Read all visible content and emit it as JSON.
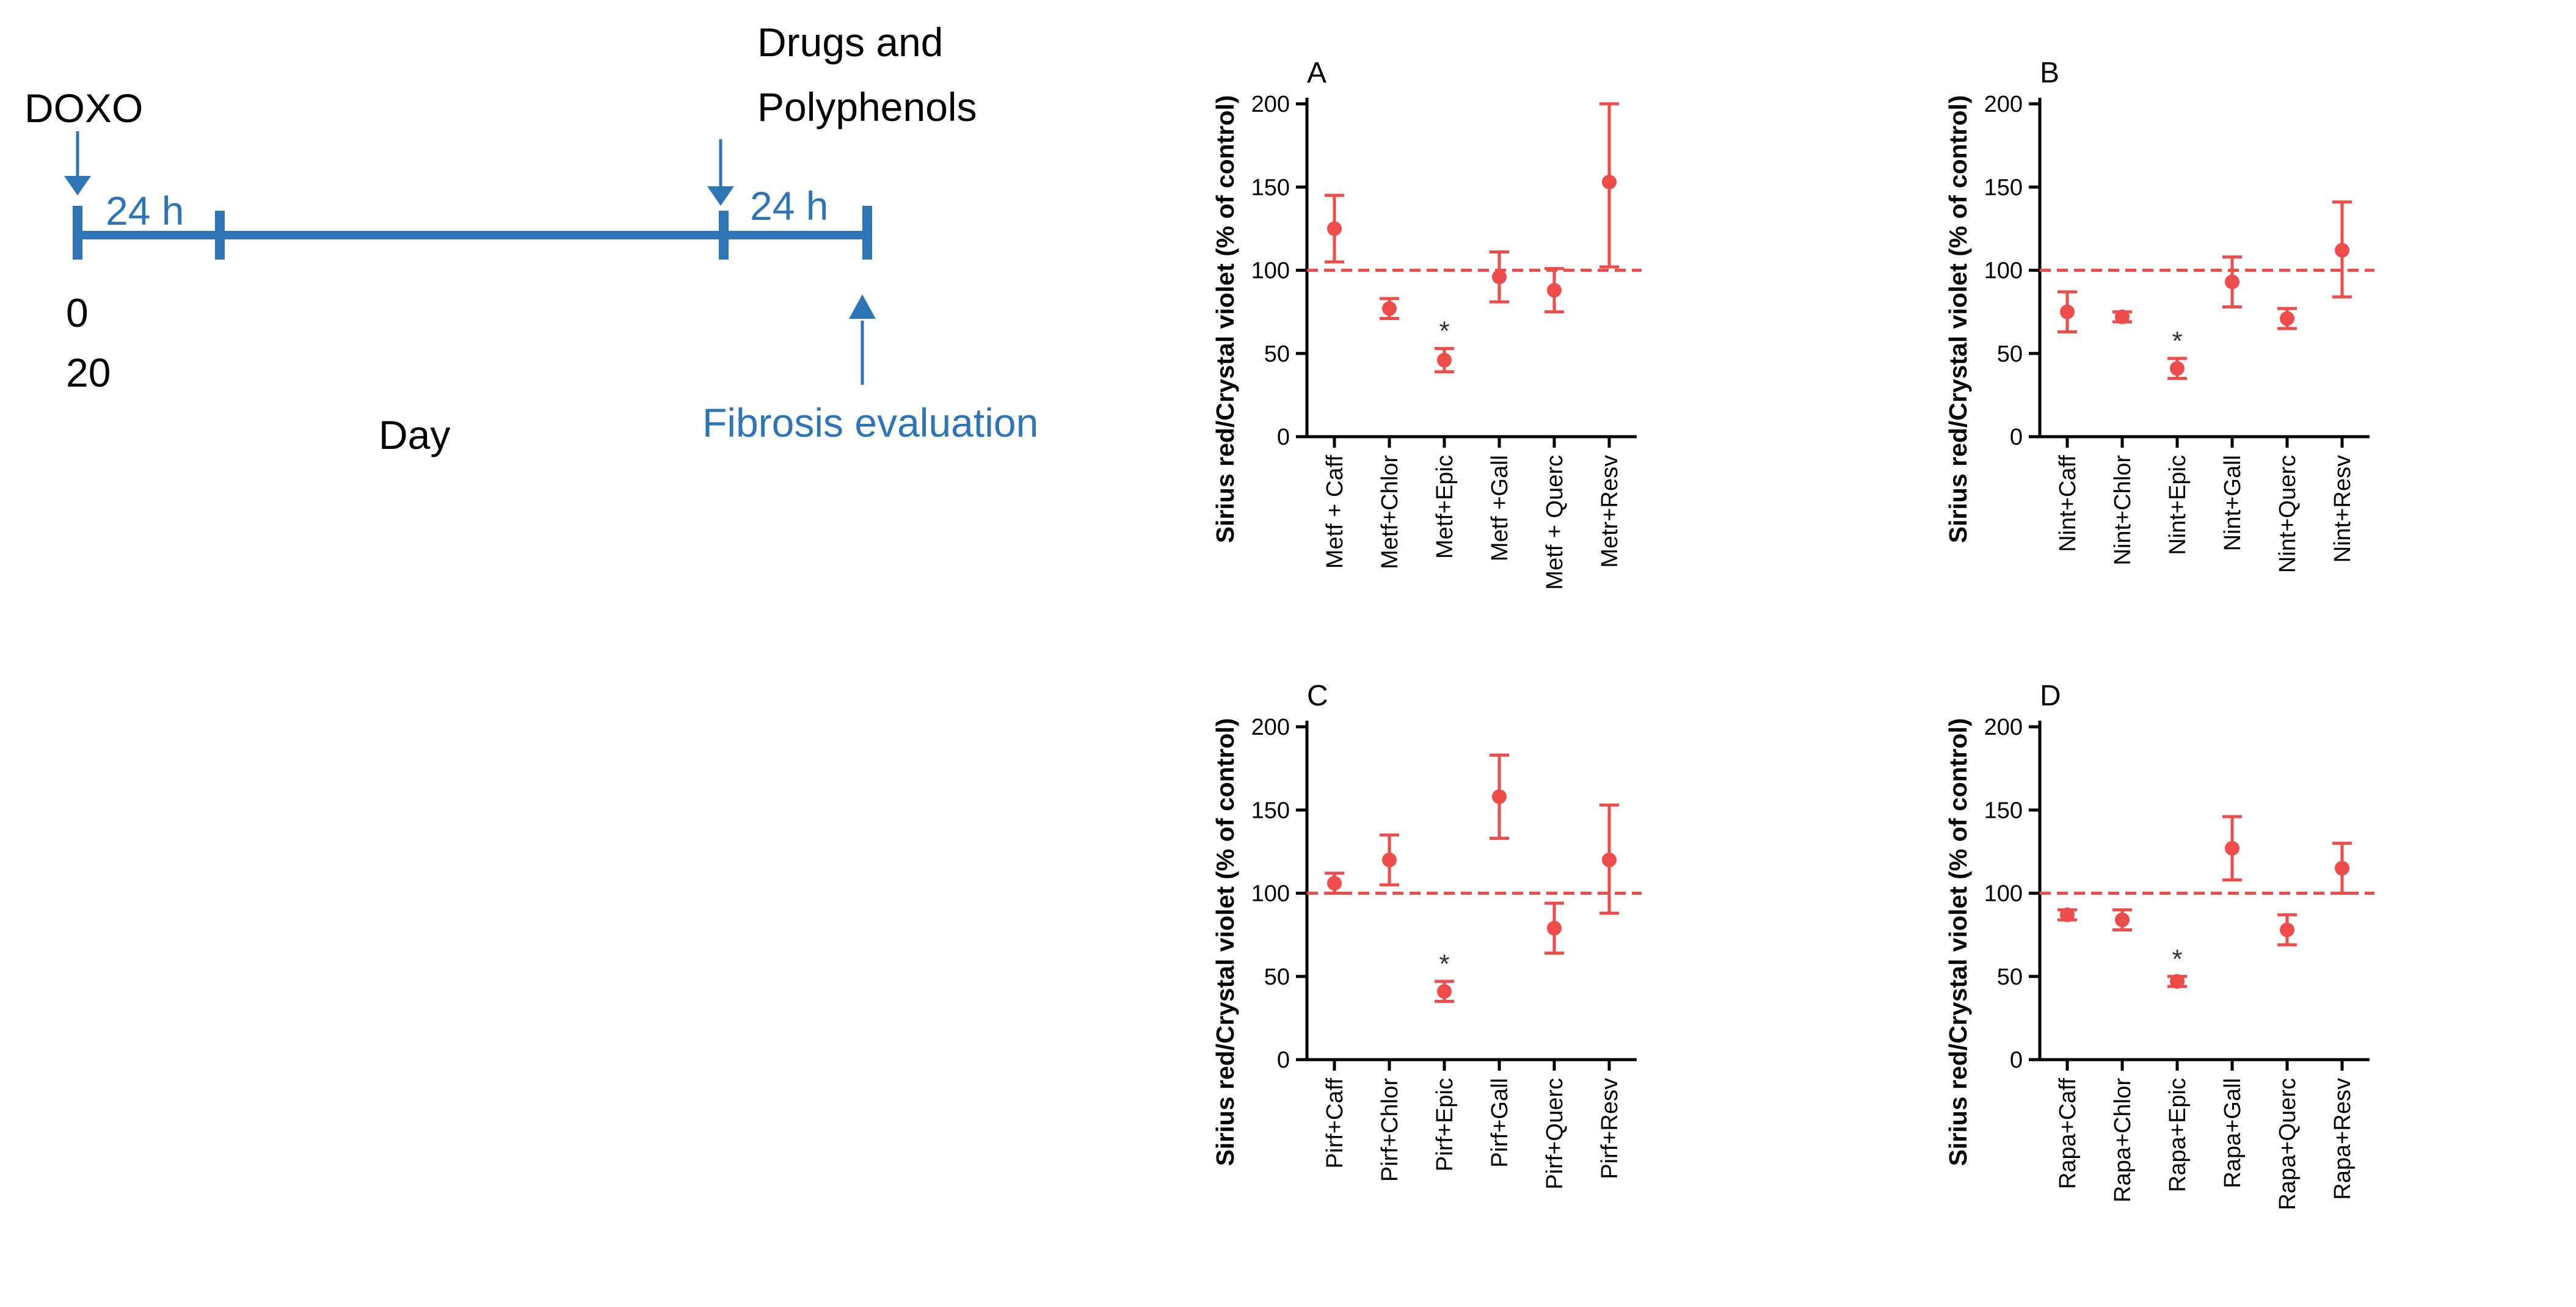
{
  "timeline": {
    "doxo_label": "DOXO",
    "drugs_label_line1": "Drugs and",
    "drugs_label_line2": "Polyphenols",
    "segment1_label": "24 h",
    "segment2_label": "24 h",
    "day_start_label": "0",
    "day_end_label": "20",
    "axis_label": "Day",
    "evaluation_label": "Fibrosis evaluation",
    "colors": {
      "timeline": "#2E75B6",
      "text": "#000000"
    }
  },
  "colors": {
    "marker": "#EE4B4B",
    "reference_line": "#EE4B4B",
    "axis": "#000000"
  },
  "chart_data": [
    {
      "panel": "A",
      "type": "scatter",
      "ylabel": "Sirius red/Crystal violet (% of control)",
      "ylim": [
        0,
        200
      ],
      "yticks": [
        0,
        50,
        100,
        150,
        200
      ],
      "reference_line": 100,
      "categories": [
        "Metf + Caff",
        "Metf+Chlor",
        "Metf+Epic",
        "Metf +Gall",
        "Metf + Querc",
        "Metr+Resv"
      ],
      "values": [
        125,
        77,
        46,
        96,
        88,
        153
      ],
      "error_lower": [
        105,
        71,
        39,
        81,
        75,
        102
      ],
      "error_upper": [
        145,
        83,
        53,
        111,
        101,
        200
      ],
      "significance": [
        "",
        "",
        "*",
        "",
        "",
        ""
      ]
    },
    {
      "panel": "B",
      "type": "scatter",
      "ylabel": "Sirius red/Crystal violet (% of control)",
      "ylim": [
        0,
        200
      ],
      "yticks": [
        0,
        50,
        100,
        150,
        200
      ],
      "reference_line": 100,
      "categories": [
        "Nint+Caff",
        "Nint+Chlor",
        "Nint+Epic",
        "Nint+Gall",
        "Nint+Querc",
        "Nint+Resv"
      ],
      "values": [
        75,
        72,
        41,
        93,
        71,
        112
      ],
      "error_lower": [
        63,
        69,
        35,
        78,
        65,
        84
      ],
      "error_upper": [
        87,
        75,
        47,
        108,
        77,
        141
      ],
      "significance": [
        "",
        "",
        "*",
        "",
        "",
        ""
      ]
    },
    {
      "panel": "C",
      "type": "scatter",
      "ylabel": "Sirius red/Crystal violet (% of control)",
      "ylim": [
        0,
        200
      ],
      "yticks": [
        0,
        50,
        100,
        150,
        200
      ],
      "reference_line": 100,
      "categories": [
        "Pirf+Caff",
        "Pirf+Chlor",
        "Pirf+Epic",
        "Pirf+Gall",
        "Pirf+Querc",
        "Pirf+Resv"
      ],
      "values": [
        106,
        120,
        41,
        158,
        79,
        120
      ],
      "error_lower": [
        100,
        105,
        35,
        133,
        64,
        88
      ],
      "error_upper": [
        112,
        135,
        47,
        183,
        94,
        153
      ],
      "significance": [
        "",
        "",
        "*",
        "",
        "",
        ""
      ]
    },
    {
      "panel": "D",
      "type": "scatter",
      "ylabel": "Sirius red/Crystal violet (% of control)",
      "ylim": [
        0,
        200
      ],
      "yticks": [
        0,
        50,
        100,
        150,
        200
      ],
      "reference_line": 100,
      "categories": [
        "Rapa+Caff",
        "Rapa+Chlor",
        "Rapa+Epic",
        "Rapa+Gall",
        "Rapa+Querc",
        "Rapa+Resv"
      ],
      "values": [
        87,
        84,
        47,
        127,
        78,
        115
      ],
      "error_lower": [
        84,
        78,
        44,
        108,
        69,
        100
      ],
      "error_upper": [
        90,
        90,
        50,
        146,
        87,
        130
      ],
      "significance": [
        "",
        "",
        "*",
        "",
        "",
        ""
      ]
    }
  ]
}
